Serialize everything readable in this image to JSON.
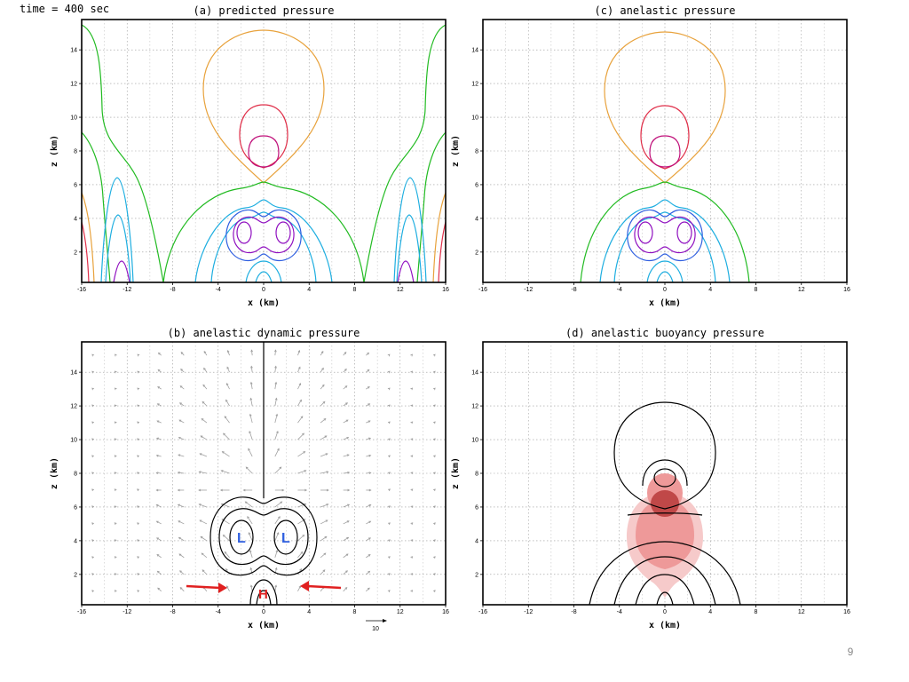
{
  "header": {
    "time_label": "time = 400 sec"
  },
  "page_number": "9",
  "colors": {
    "orange": "#e8a23c",
    "red": "#e0304a",
    "magenta": "#c0107a",
    "green": "#22bb22",
    "cyan": "#1eaee0",
    "blue": "#2f5fe0",
    "purple": "#9010c0",
    "vector": "#a0a0a0",
    "arrow_red": "#e02020",
    "fill_light": "#f6caca",
    "fill_mid": "#ee9999",
    "fill_dark": "#c04848"
  },
  "chart_data": [
    {
      "id": "a",
      "type": "contour",
      "title": "(a)  predicted pressure",
      "xlabel": "x (km)",
      "ylabel": "z (km)",
      "xlim": [
        -16,
        16
      ],
      "ylim": [
        0.2,
        15.8
      ],
      "xticks": [
        "-16",
        "-12",
        "-8",
        "-4",
        "0",
        "4",
        "8",
        "12",
        "16"
      ],
      "yticks": [
        "2",
        "4",
        "6",
        "8",
        "10",
        "12",
        "14"
      ],
      "grid": true
    },
    {
      "id": "c",
      "type": "contour",
      "title": "(c)  anelastic pressure",
      "xlabel": "x (km)",
      "ylabel": "z (km)",
      "xlim": [
        -16,
        16
      ],
      "ylim": [
        0.2,
        15.8
      ],
      "xticks": [
        "-16",
        "-12",
        "-8",
        "-4",
        "0",
        "4",
        "8",
        "12",
        "16"
      ],
      "yticks": [
        "2",
        "4",
        "6",
        "8",
        "10",
        "12",
        "14"
      ],
      "grid": true
    },
    {
      "id": "b",
      "type": "contour",
      "title": "(b)  anelastic dynamic pressure",
      "xlabel": "x (km)",
      "ylabel": "z (km)",
      "xlim": [
        -16,
        16
      ],
      "ylim": [
        0.2,
        15.8
      ],
      "xticks": [
        "-16",
        "-12",
        "-8",
        "-4",
        "0",
        "4",
        "8",
        "12",
        "16"
      ],
      "yticks": [
        "2",
        "4",
        "6",
        "8",
        "10",
        "12",
        "14"
      ],
      "grid": true,
      "annotations": [
        {
          "text": "L",
          "x": -2.2,
          "z": 4.0
        },
        {
          "text": "L",
          "x": 2.2,
          "z": 4.0
        },
        {
          "text": "H",
          "x": 0,
          "z": 0.9
        }
      ],
      "vector_reference": "10"
    },
    {
      "id": "d",
      "type": "contour",
      "title": "(d)  anelastic buoyancy pressure",
      "xlabel": "x (km)",
      "ylabel": "z (km)",
      "xlim": [
        -16,
        16
      ],
      "ylim": [
        0.2,
        15.8
      ],
      "xticks": [
        "-16",
        "-12",
        "-8",
        "-4",
        "0",
        "4",
        "8",
        "12",
        "16"
      ],
      "yticks": [
        "2",
        "4",
        "6",
        "8",
        "10",
        "12",
        "14"
      ],
      "grid": true
    }
  ]
}
